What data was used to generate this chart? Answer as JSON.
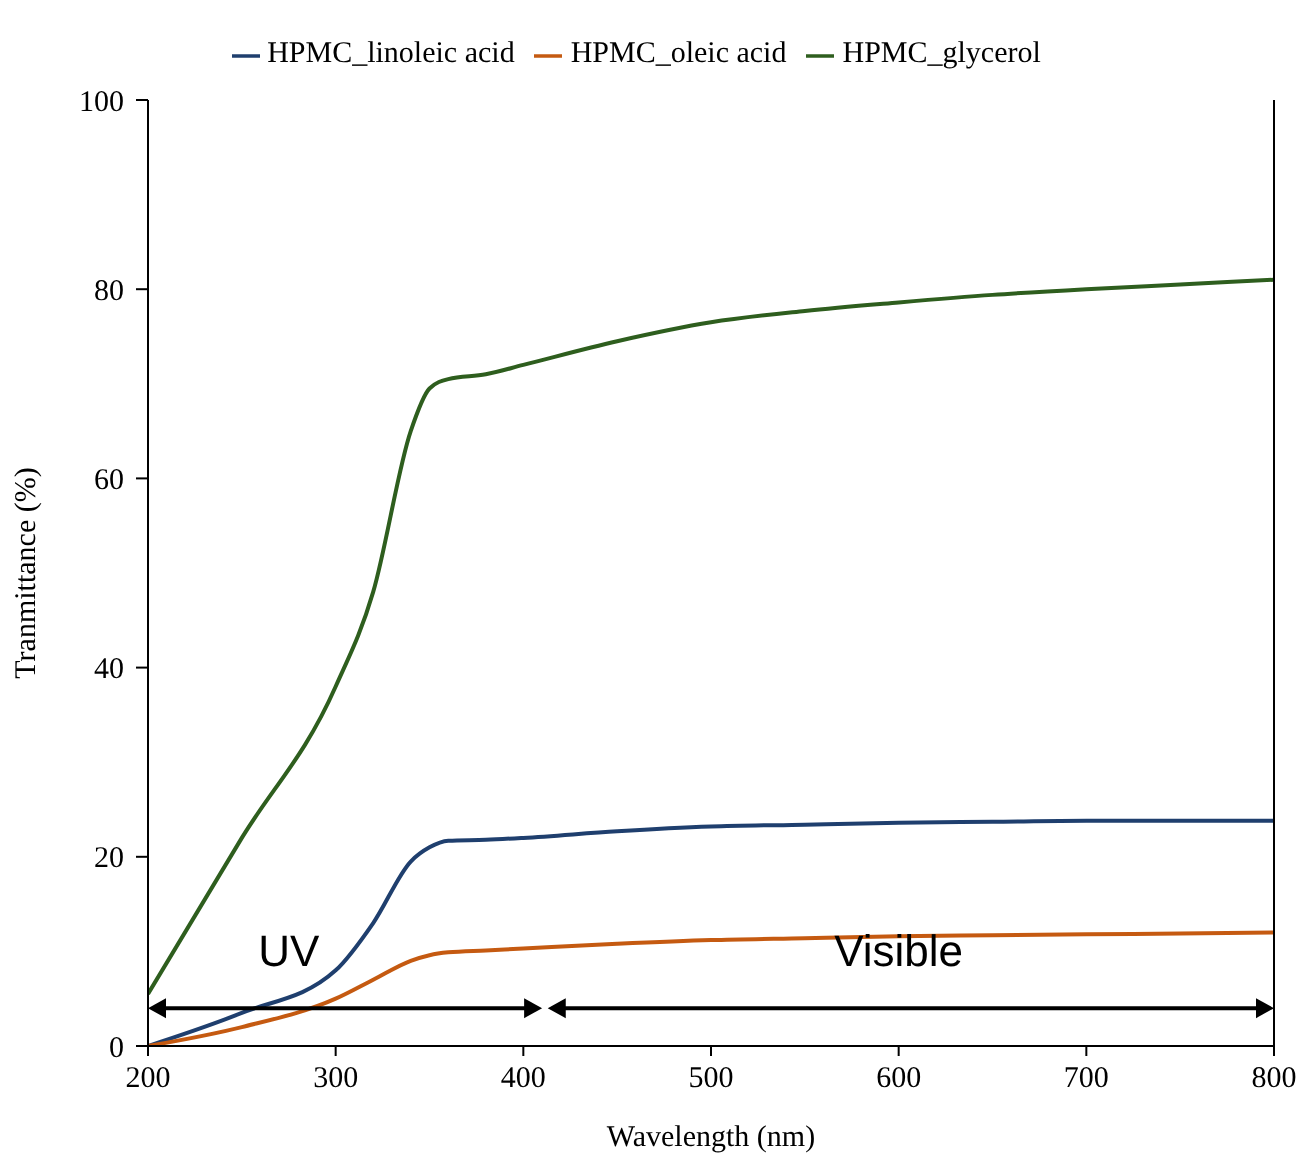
{
  "chart_data": {
    "type": "line",
    "xlabel": "Wavelength (nm)",
    "ylabel": "Tranmittance (%)",
    "xlim": [
      200,
      800
    ],
    "xticks": [
      200,
      300,
      400,
      500,
      600,
      700,
      800
    ],
    "ylim": [
      0,
      100
    ],
    "yticks": [
      0,
      20,
      40,
      60,
      80,
      100
    ],
    "grid": false,
    "legend": "top",
    "marker": "none",
    "line_style": "solid",
    "x": [
      200,
      250,
      300,
      320,
      340,
      350,
      360,
      380,
      400,
      450,
      500,
      550,
      600,
      650,
      700,
      750,
      800
    ],
    "series": [
      {
        "name": "HPMC_linoleic acid",
        "color": "#1f3f6e",
        "values": [
          0,
          3.5,
          8,
          13,
          19.5,
          21,
          21.7,
          21.8,
          22,
          22.7,
          23.2,
          23.4,
          23.6,
          23.7,
          23.8,
          23.8,
          23.8
        ]
      },
      {
        "name": "HPMC_oleic acid",
        "color": "#c55a11",
        "values": [
          0,
          2,
          5,
          7,
          9,
          9.6,
          9.9,
          10.1,
          10.3,
          10.8,
          11.2,
          11.4,
          11.6,
          11.7,
          11.8,
          11.9,
          12
        ]
      },
      {
        "name": "HPMC_glycerol",
        "color": "#2e5e1e",
        "values": [
          5.5,
          22,
          38,
          48,
          65,
          69.5,
          70.5,
          71,
          72,
          74.5,
          76.5,
          77.7,
          78.6,
          79.4,
          80,
          80.5,
          81
        ]
      }
    ],
    "annotations": [
      "UV",
      "Visible"
    ]
  }
}
